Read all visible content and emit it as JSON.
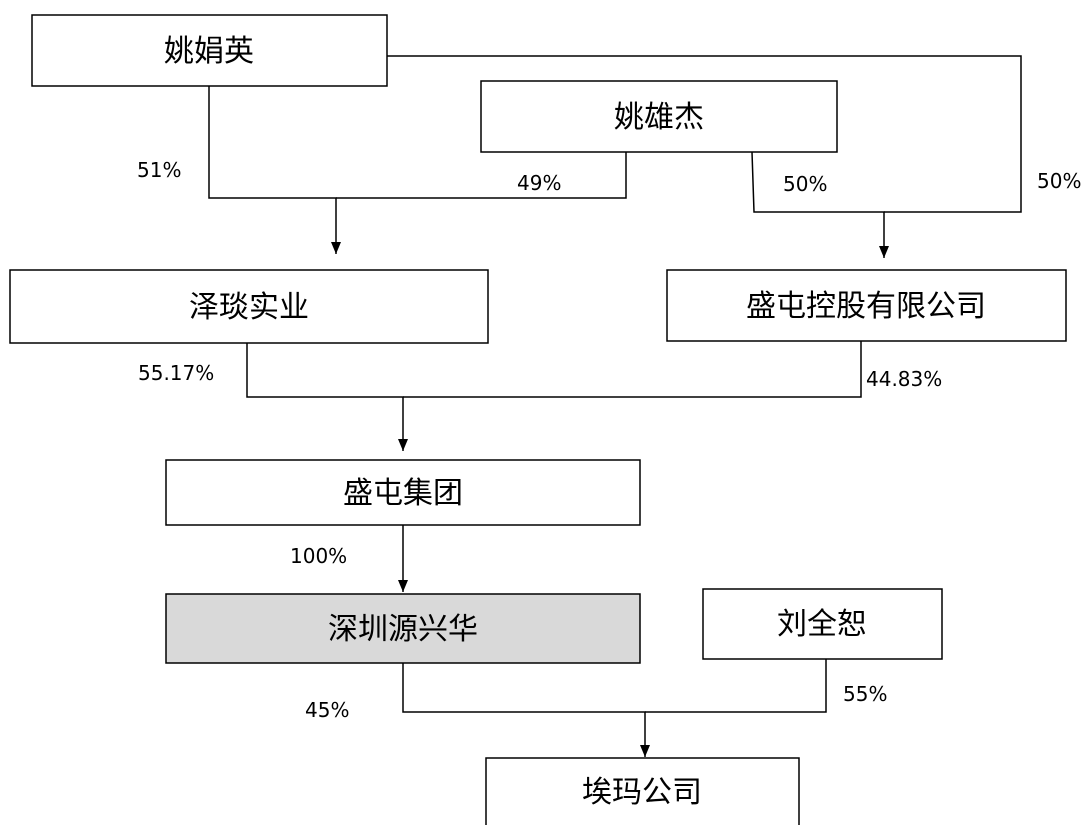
{
  "entities": {
    "yao_juanying": "姚娟英",
    "yao_xiongjie": "姚雄杰",
    "zetan": "泽琰实业",
    "shengtun_holdings": "盛屯控股有限公司",
    "shengtun_group": "盛屯集团",
    "shenzhen_yuanxinghua": "深圳源兴华",
    "liu_quanshu": "刘全恕",
    "aima": "埃玛公司"
  },
  "shares": {
    "juanying_to_zetan": "51%",
    "xiongjie_to_zetan": "49%",
    "xiongjie_to_holdings": "50%",
    "juanying_to_holdings": "50%",
    "zetan_to_group": "55.17%",
    "holdings_to_group": "44.83%",
    "group_to_yuanxinghua": "100%",
    "yuanxinghua_to_aima": "45%",
    "liu_to_aima": "55%"
  },
  "colors": {
    "highlight_fill": "#d9d9d9",
    "line": "#000000"
  }
}
